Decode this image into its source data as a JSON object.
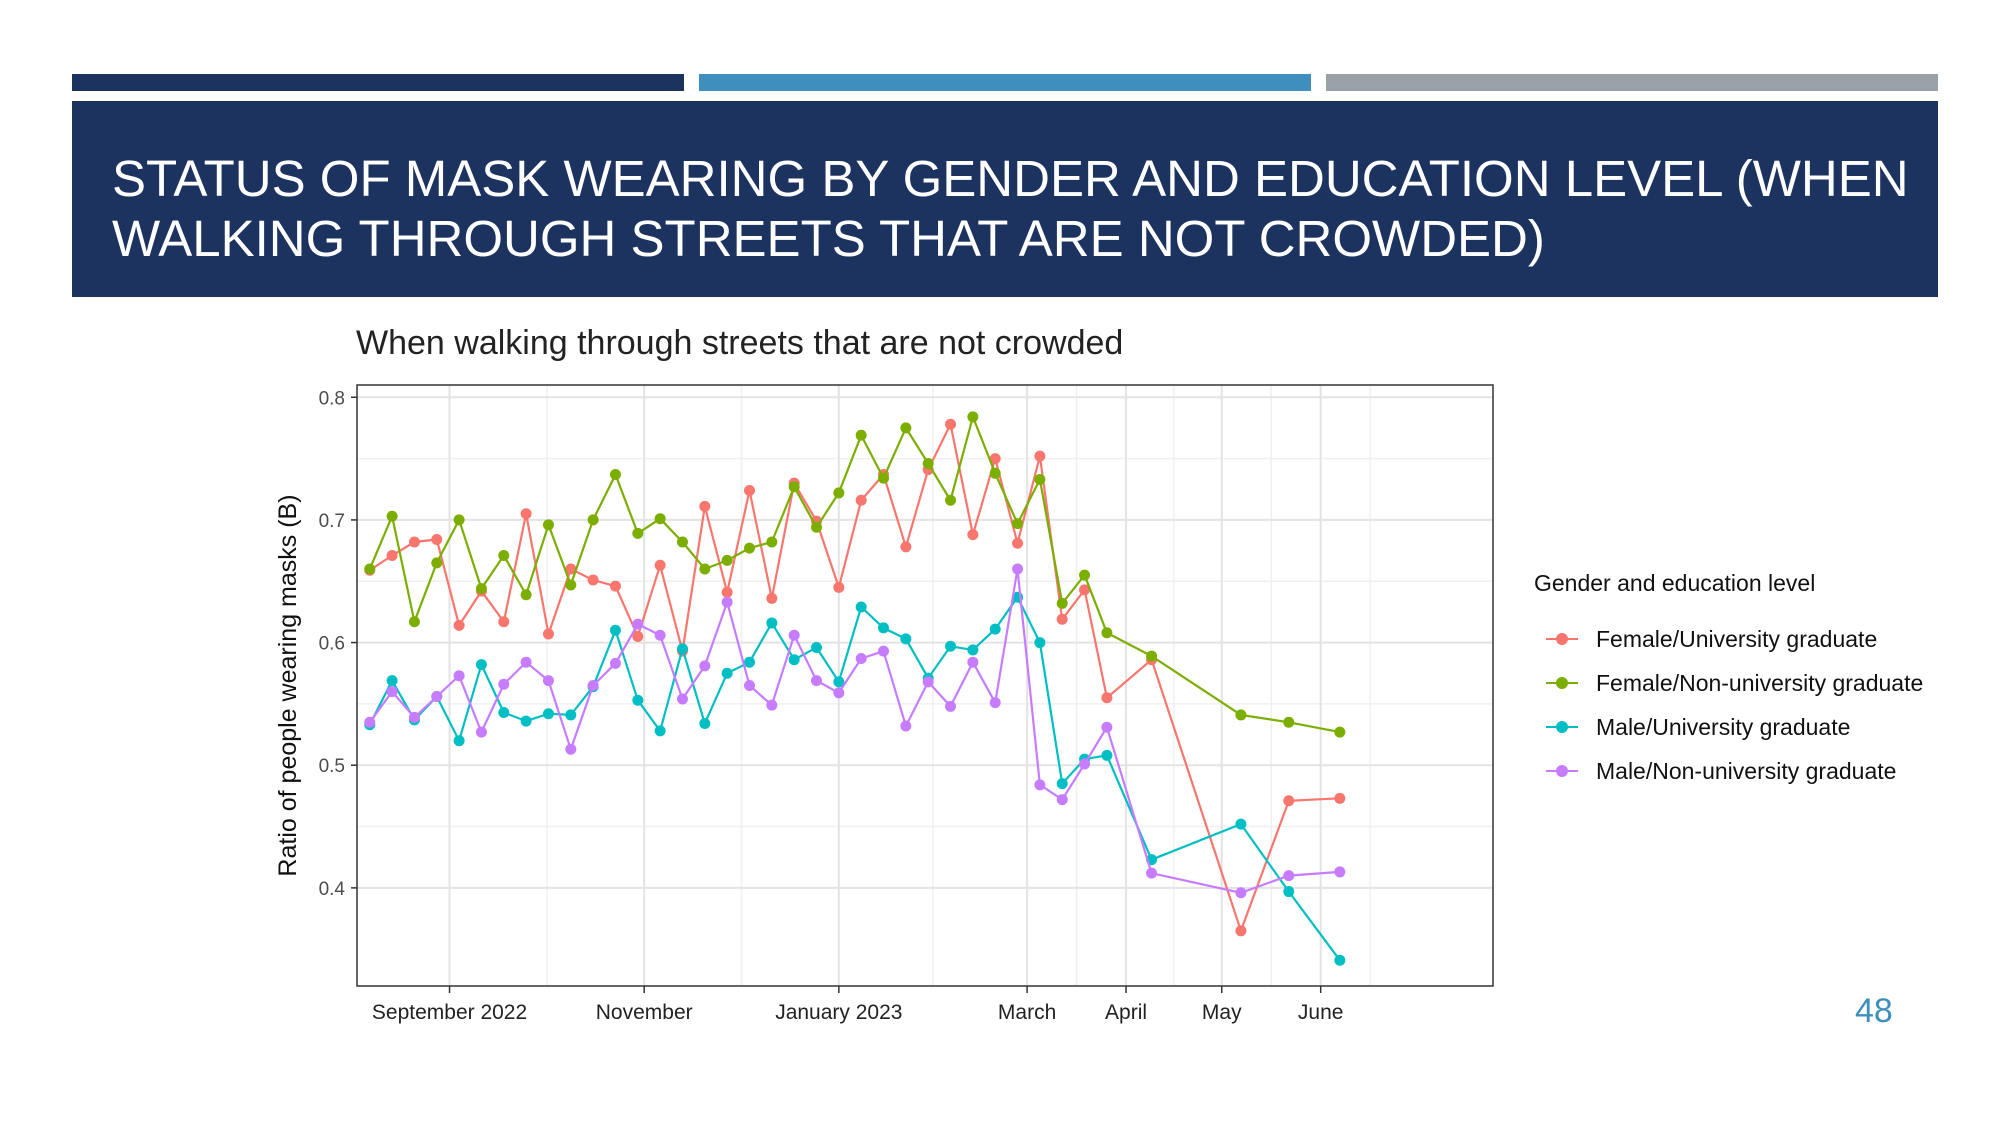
{
  "header": {
    "title": "STATUS OF MASK WEARING BY GENDER AND EDUCATION LEVEL (WHEN WALKING THROUGH STREETS THAT ARE NOT CROWDED)"
  },
  "colors": {
    "bar1": "#1c325f",
    "bar2": "#3e8fbd",
    "bar3": "#98a0a8",
    "header_bg": "#1c325f",
    "page_number": "#3e8fbd"
  },
  "page_number": "48",
  "chart_data": {
    "type": "line",
    "title": "When walking through streets that are not crowded",
    "xlabel": "",
    "ylabel": "Ratio of people wearing masks (B)",
    "x_axis": {
      "type": "date",
      "range": [
        "2022-08-03",
        "2023-07-25"
      ],
      "ticks": [
        {
          "label": "September 2022",
          "date": "2022-09-01"
        },
        {
          "label": "November",
          "date": "2022-11-01"
        },
        {
          "label": "January 2023",
          "date": "2023-01-01"
        },
        {
          "label": "March",
          "date": "2023-03-01"
        },
        {
          "label": "April",
          "date": "2023-04-01"
        },
        {
          "label": "May",
          "date": "2023-05-01"
        },
        {
          "label": "June",
          "date": "2023-06-01"
        }
      ]
    },
    "ylim": [
      0.32,
      0.81
    ],
    "yticks": [
      0.4,
      0.5,
      0.6,
      0.7,
      0.8
    ],
    "grid": true,
    "legend_position": "right",
    "legend_title": "Gender and education level",
    "x": [
      "2022-08-07",
      "2022-08-14",
      "2022-08-21",
      "2022-08-28",
      "2022-09-04",
      "2022-09-11",
      "2022-09-18",
      "2022-09-25",
      "2022-10-02",
      "2022-10-09",
      "2022-10-16",
      "2022-10-23",
      "2022-10-30",
      "2022-11-06",
      "2022-11-13",
      "2022-11-20",
      "2022-11-27",
      "2022-12-04",
      "2022-12-11",
      "2022-12-18",
      "2022-12-25",
      "2023-01-01",
      "2023-01-08",
      "2023-01-15",
      "2023-01-22",
      "2023-01-29",
      "2023-02-05",
      "2023-02-12",
      "2023-02-19",
      "2023-02-26",
      "2023-03-05",
      "2023-03-12",
      "2023-03-19",
      "2023-03-26",
      "2023-04-09",
      "2023-04-24",
      "2023-05-07",
      "2023-05-22",
      "2023-06-07",
      "2023-06-22"
    ],
    "series": [
      {
        "name": "Female/University graduate",
        "color": "#f8766d",
        "values": [
          0.659,
          0.671,
          0.682,
          0.684,
          0.614,
          0.642,
          0.617,
          0.705,
          0.607,
          0.66,
          0.651,
          0.646,
          0.605,
          0.663,
          0.593,
          0.711,
          0.641,
          0.724,
          0.636,
          0.73,
          0.699,
          0.645,
          0.716,
          0.737,
          0.678,
          0.741,
          0.778,
          0.688,
          0.75,
          0.681,
          0.752,
          0.619,
          0.643,
          0.555,
          0.586,
          null,
          0.365,
          0.471,
          0.473,
          null
        ]
      },
      {
        "name": "Female/Non-university graduate",
        "color": "#7cae00",
        "values": [
          0.66,
          0.703,
          0.617,
          0.665,
          0.7,
          0.644,
          0.671,
          0.639,
          0.696,
          0.647,
          0.7,
          0.737,
          0.689,
          0.701,
          0.682,
          0.66,
          0.667,
          0.677,
          0.682,
          0.727,
          0.694,
          0.722,
          0.769,
          0.734,
          0.775,
          0.746,
          0.716,
          0.784,
          0.738,
          0.697,
          0.733,
          0.632,
          0.655,
          0.608,
          0.589,
          null,
          0.541,
          0.535,
          0.527,
          null
        ]
      },
      {
        "name": "Male/University graduate",
        "color": "#00bfc4",
        "values": [
          0.533,
          0.569,
          0.537,
          0.556,
          0.52,
          0.582,
          0.543,
          0.536,
          0.542,
          0.541,
          0.564,
          0.61,
          0.553,
          0.528,
          0.595,
          0.534,
          0.575,
          0.584,
          0.616,
          0.586,
          0.596,
          0.568,
          0.629,
          0.612,
          0.603,
          0.571,
          0.597,
          0.594,
          0.611,
          0.637,
          0.6,
          0.485,
          0.505,
          0.508,
          0.423,
          null,
          0.452,
          0.397,
          0.341,
          null
        ]
      },
      {
        "name": "Male/Non-university graduate",
        "color": "#c77cff",
        "values": [
          0.535,
          0.56,
          0.539,
          0.556,
          0.573,
          0.527,
          0.566,
          0.584,
          0.569,
          0.513,
          0.565,
          0.583,
          0.615,
          0.606,
          0.554,
          0.581,
          0.633,
          0.565,
          0.549,
          0.606,
          0.569,
          0.559,
          0.587,
          0.593,
          0.532,
          0.568,
          0.548,
          0.584,
          0.551,
          0.66,
          0.484,
          0.472,
          0.501,
          0.531,
          0.412,
          null,
          0.396,
          0.41,
          0.413,
          null
        ]
      }
    ]
  }
}
